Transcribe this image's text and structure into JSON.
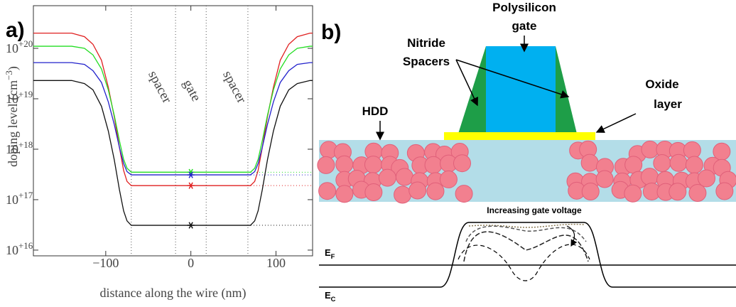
{
  "chart_data": {
    "type": "line",
    "panel_label": "a)",
    "xlabel": "distance along the wire (nm)",
    "ylabel": "doping level (cm−3)",
    "log_y": true,
    "xlim": [
      -185,
      143
    ],
    "ylim": [
      7700000000000000.0,
      7e+20
    ],
    "xticks": [
      {
        "value": -100,
        "label": "−100"
      },
      0,
      100
    ],
    "yticks": [
      {
        "value": 1e+16,
        "label": "10+16"
      },
      {
        "value": 1e+17,
        "label": "10+17"
      },
      {
        "value": 1e+18,
        "label": "10+18"
      },
      {
        "value": 1e+19,
        "label": "10+19"
      },
      {
        "value": 1e+20,
        "label": "10+20"
      }
    ],
    "annotations": [
      "spacer",
      "gate",
      "spacer"
    ],
    "vlines": [
      -70,
      -18,
      18,
      67
    ],
    "star_x": 0,
    "x": [
      -185,
      -140,
      -125,
      -115,
      -105,
      -97,
      -90,
      -84,
      -79,
      -75,
      -70,
      70,
      75,
      79,
      84,
      90,
      97,
      105,
      115,
      125,
      140,
      143
    ],
    "series": [
      {
        "color": "#e02020",
        "star": 1.9e+17,
        "values": [
          2e+20,
          2e+20,
          1.7e+20,
          1.2e+20,
          5.8e+19,
          1.7e+19,
          4.4e+18,
          1.1e+18,
          3.8e+17,
          2.3e+17,
          1.9e+17,
          1.9e+17,
          2.3e+17,
          3.8e+17,
          1.1e+18,
          4.4e+18,
          1.7e+19,
          5.8e+19,
          1.2e+20,
          1.7e+20,
          2e+20,
          2e+20
        ]
      },
      {
        "color": "#22dd22",
        "star": 3.5e+17,
        "values": [
          1.1e+20,
          1.1e+20,
          1e+20,
          7.4e+19,
          3.9e+19,
          1.5e+19,
          4.7e+18,
          1.5e+18,
          6.3e+17,
          4.2e+17,
          3.5e+17,
          3.5e+17,
          4.2e+17,
          6.3e+17,
          1.5e+18,
          4.7e+18,
          1.5e+19,
          3.9e+19,
          7.4e+19,
          1e+20,
          1.1e+20,
          1.1e+20
        ]
      },
      {
        "color": "#2222cc",
        "star": 3.1e+17,
        "values": [
          5.2e+19,
          5.2e+19,
          4.8e+19,
          3.6e+19,
          2.1e+19,
          8.7e+18,
          3.1e+18,
          1.1e+18,
          5.2e+17,
          3.6e+17,
          3.1e+17,
          3.1e+17,
          3.6e+17,
          5.2e+17,
          1.1e+18,
          3.1e+18,
          8.7e+18,
          2.1e+19,
          3.6e+19,
          4.8e+19,
          5.2e+19,
          5.2e+19
        ]
      },
      {
        "color": "#111111",
        "star": 3.1e+16,
        "values": [
          2.3e+19,
          2.3e+19,
          2e+19,
          1.5e+19,
          7.1e+18,
          2.3e+18,
          6.2e+17,
          1.6e+17,
          6e+16,
          3.8e+16,
          3.1e+16,
          3.1e+16,
          3.8e+16,
          6e+16,
          1.6e+17,
          6.2e+17,
          2.3e+18,
          7.1e+18,
          1.5e+19,
          2e+19,
          2.3e+19,
          2.3e+19
        ]
      }
    ]
  },
  "diagram": {
    "panel_label": "b)",
    "gate_label": [
      "Polysilicon",
      "gate"
    ],
    "spacer_label": [
      "Nitride",
      "Spacers"
    ],
    "oxide_label": [
      "Oxide",
      "layer"
    ],
    "hdd_label": "HDD",
    "voltage_label": "Increasing gate voltage",
    "fermi_label": "EF",
    "conduction_label": "EC"
  }
}
